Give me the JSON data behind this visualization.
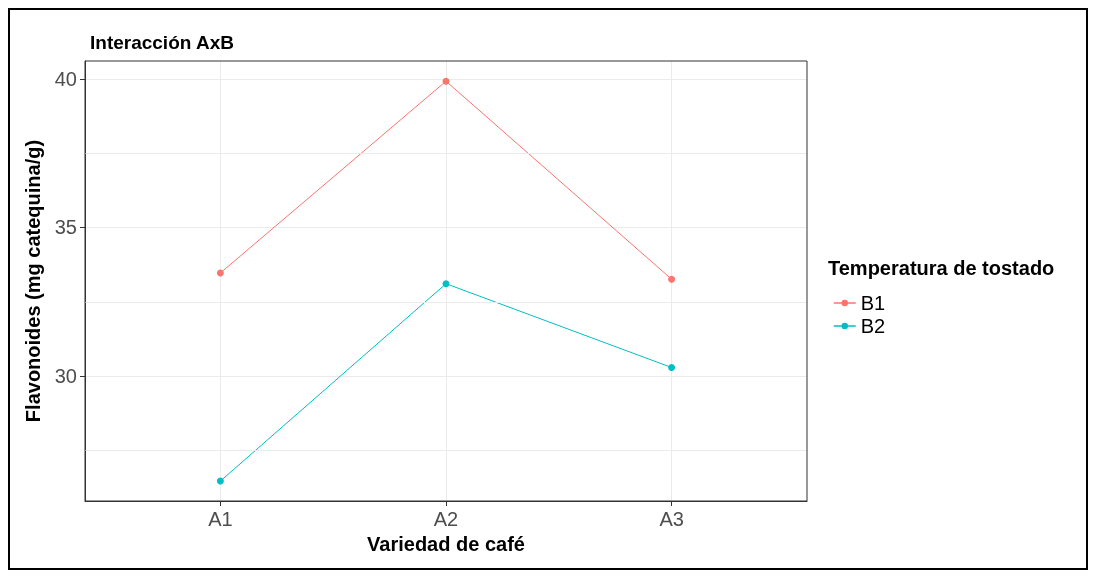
{
  "chart_data": {
    "type": "line",
    "title": "Interacción AxB",
    "xlabel": "Variedad de café",
    "ylabel": "Flavonoides (mg catequina/g)",
    "legend_title": "Temperatura de tostado",
    "categories": [
      "A1",
      "A2",
      "A3"
    ],
    "series": [
      {
        "name": "B1",
        "color": "#f8766d",
        "values": [
          33.47,
          39.92,
          33.26
        ]
      },
      {
        "name": "B2",
        "color": "#00bfc4",
        "values": [
          26.47,
          33.11,
          30.29
        ]
      }
    ],
    "ylim": [
      25.8,
      40.6
    ],
    "yticks": [
      {
        "value": 27.5,
        "label": null
      },
      30,
      {
        "value": 32.5,
        "label": null
      },
      35,
      {
        "value": 37.5,
        "label": null
      },
      40
    ],
    "grid": true,
    "legend": "right",
    "marker": "circle",
    "line_style": "solid"
  }
}
